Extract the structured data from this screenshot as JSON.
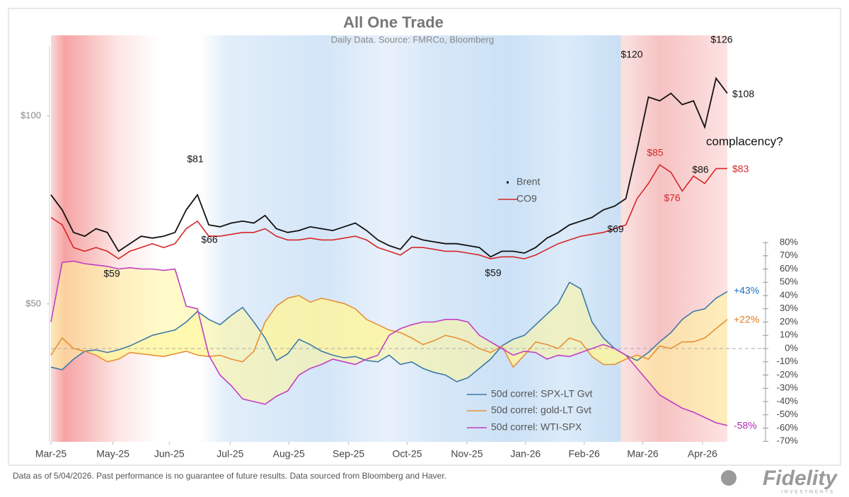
{
  "chart_data": {
    "type": "line",
    "title": "All One Trade",
    "subtitle": "Daily Data. Source: FMRCo, Bloomberg",
    "x": [
      0,
      1,
      2,
      3,
      4,
      5,
      6,
      7,
      8,
      9,
      10,
      11,
      12,
      13,
      14,
      15,
      16,
      17,
      18,
      19,
      20,
      21,
      22,
      23,
      24,
      25,
      26,
      27,
      28,
      29,
      30,
      31,
      32,
      33,
      34,
      35,
      36,
      37,
      38,
      39,
      40,
      41,
      42,
      43,
      44,
      45,
      46,
      47,
      48,
      49,
      50,
      51,
      52,
      53,
      54,
      55,
      56,
      57,
      58,
      59,
      60
    ],
    "xlim": [
      0,
      60
    ],
    "xticks": [
      {
        "value": 0,
        "label": "Mar-25"
      },
      {
        "value": 5.5,
        "label": "May-25"
      },
      {
        "value": 10.5,
        "label": "Jun-25"
      },
      {
        "value": 15.9,
        "label": "Jul-25"
      },
      {
        "value": 21.1,
        "label": "Aug-25"
      },
      {
        "value": 26.4,
        "label": "Sep-25"
      },
      {
        "value": 31.6,
        "label": "Oct-25"
      },
      {
        "value": 36.9,
        "label": "Nov-25"
      },
      {
        "value": 42.1,
        "label": "Jan-26"
      },
      {
        "value": 47.3,
        "label": "Feb-26"
      },
      {
        "value": 52.5,
        "label": "Mar-26"
      },
      {
        "value": 57.8,
        "label": "Apr-26"
      }
    ],
    "ylim": [
      13.3,
      118.6
    ],
    "yticks": [
      {
        "value": 50,
        "label": "$50"
      },
      {
        "value": 100,
        "label": "$100"
      }
    ],
    "y2lim": [
      -70.4,
      228.3
    ],
    "y2ticks": [
      {
        "value": 80,
        "label": "80%"
      },
      {
        "value": 70,
        "label": "70%"
      },
      {
        "value": 60,
        "label": "60%"
      },
      {
        "value": 50,
        "label": "50%"
      },
      {
        "value": 40,
        "label": "40%"
      },
      {
        "value": 30,
        "label": "30%"
      },
      {
        "value": 20,
        "label": "20%"
      },
      {
        "value": 10,
        "label": "10%"
      },
      {
        "value": 0,
        "label": "0%"
      },
      {
        "value": -10,
        "label": "-10%"
      },
      {
        "value": -20,
        "label": "-20%"
      },
      {
        "value": -30,
        "label": "-30%"
      },
      {
        "value": -40,
        "label": "-40%"
      },
      {
        "value": -50,
        "label": "-50%"
      },
      {
        "value": -60,
        "label": "-60%"
      },
      {
        "value": -70,
        "label": "-70%"
      }
    ],
    "series": [
      {
        "name": "Brent",
        "color": "#111111",
        "values": [
          79,
          75,
          69,
          68,
          70,
          69,
          64,
          66,
          68,
          67.5,
          68,
          69,
          75,
          79,
          71,
          70.5,
          71.5,
          72,
          71.5,
          73.5,
          70,
          69,
          69.5,
          70.5,
          70,
          69.5,
          70.5,
          71.5,
          69.5,
          67,
          65.5,
          64.5,
          68,
          67,
          66.5,
          66,
          66,
          65.5,
          65,
          62.5,
          64,
          64,
          63.5,
          65,
          67.5,
          69,
          71,
          72,
          73,
          75,
          76,
          78,
          91,
          105,
          104,
          106,
          103,
          104,
          97,
          110,
          106
        ]
      },
      {
        "name": "CO9",
        "color": "#d62728",
        "values": [
          73,
          71,
          65,
          64,
          65,
          64,
          62,
          64,
          65,
          66,
          65,
          66,
          70,
          72,
          68,
          68,
          68.5,
          69,
          69,
          70,
          68,
          67,
          67,
          67.5,
          67,
          67,
          67.5,
          68,
          67,
          65,
          64,
          63,
          65,
          65,
          64.5,
          64,
          64,
          63.5,
          63,
          62,
          62.5,
          62.5,
          62,
          63,
          64.5,
          66,
          67,
          68,
          68.5,
          69,
          70,
          71,
          78,
          82,
          87,
          85,
          80,
          84,
          82,
          86,
          86
        ]
      },
      {
        "name": "50d correl: SPX-LT Gvt",
        "color": "#3d7aa8",
        "axis": "y2",
        "values": [
          -14,
          -16,
          -8,
          -2,
          -1,
          -3,
          -1,
          2,
          6,
          10,
          12,
          14,
          20,
          28,
          22,
          18,
          25,
          31,
          20,
          8,
          -9,
          -4,
          7,
          3,
          -2,
          -5,
          -7,
          -6,
          -9,
          -10,
          -5,
          -12,
          -10,
          -15,
          -18,
          -20,
          -25,
          -22,
          -15,
          -8,
          2,
          7,
          10,
          18,
          26,
          34,
          50,
          45,
          20,
          8,
          0,
          -5,
          -9,
          -3,
          5,
          12,
          22,
          28,
          30,
          38,
          43
        ]
      },
      {
        "name": "50d correl: gold-LT Gvt",
        "color": "#e69138",
        "axis": "y2",
        "values": [
          -5,
          8,
          0,
          -2,
          -5,
          -10,
          -8,
          -3,
          -4,
          -5,
          -6,
          -4,
          -2,
          -5,
          -6,
          -5,
          -8,
          -10,
          -2,
          20,
          32,
          38,
          40,
          35,
          38,
          36,
          34,
          30,
          22,
          18,
          14,
          12,
          8,
          3,
          6,
          10,
          8,
          5,
          0,
          -3,
          2,
          -14,
          -5,
          5,
          3,
          0,
          8,
          5,
          -6,
          -12,
          -12,
          -8,
          -5,
          -8,
          2,
          0,
          5,
          5,
          8,
          15,
          22
        ]
      },
      {
        "name": "50d correl: WTI-SPX",
        "color": "#c13fc4",
        "axis": "y2",
        "values": [
          20,
          65,
          66,
          64,
          63,
          62,
          60,
          61,
          60,
          60,
          59,
          60,
          32,
          30,
          -5,
          -20,
          -28,
          -38,
          -40,
          -42,
          -36,
          -32,
          -20,
          -15,
          -12,
          -8,
          -10,
          -12,
          -8,
          -5,
          10,
          15,
          18,
          20,
          20,
          22,
          22,
          20,
          10,
          5,
          0,
          -5,
          -2,
          -3,
          -8,
          -5,
          -6,
          -3,
          0,
          3,
          0,
          -5,
          -15,
          -25,
          -35,
          -40,
          -45,
          -48,
          -52,
          -56,
          -58
        ]
      }
    ],
    "annotations": [
      {
        "text": "$126",
        "color": "#111111"
      },
      {
        "text": "$120",
        "color": "#111111"
      },
      {
        "text": "$108",
        "color": "#111111"
      },
      {
        "text": "$81",
        "color": "#111111"
      },
      {
        "text": "$66",
        "color": "#111111"
      },
      {
        "text": "$59",
        "color": "#111111"
      },
      {
        "text": "$59",
        "color": "#111111"
      },
      {
        "text": "$69",
        "color": "#111111"
      },
      {
        "text": "complacency?",
        "color": "#111111"
      },
      {
        "text": "$85",
        "color": "#d62728"
      },
      {
        "text": "$76",
        "color": "#d62728"
      },
      {
        "text": "$86",
        "color": "#111111"
      },
      {
        "text": "$83",
        "color": "#d62728"
      },
      {
        "text": "+43%",
        "color": "#1f6fc0"
      },
      {
        "text": "+22%",
        "color": "#e07b1c"
      },
      {
        "text": "-58%",
        "color": "#b02ab5"
      }
    ]
  },
  "footer": "Data as of 5/04/2026. Past performance is no guarantee of future results. Data sourced from Bloomberg and Haver.",
  "logo": {
    "name": "Fidelity",
    "tagline": "INVESTMENTS"
  }
}
